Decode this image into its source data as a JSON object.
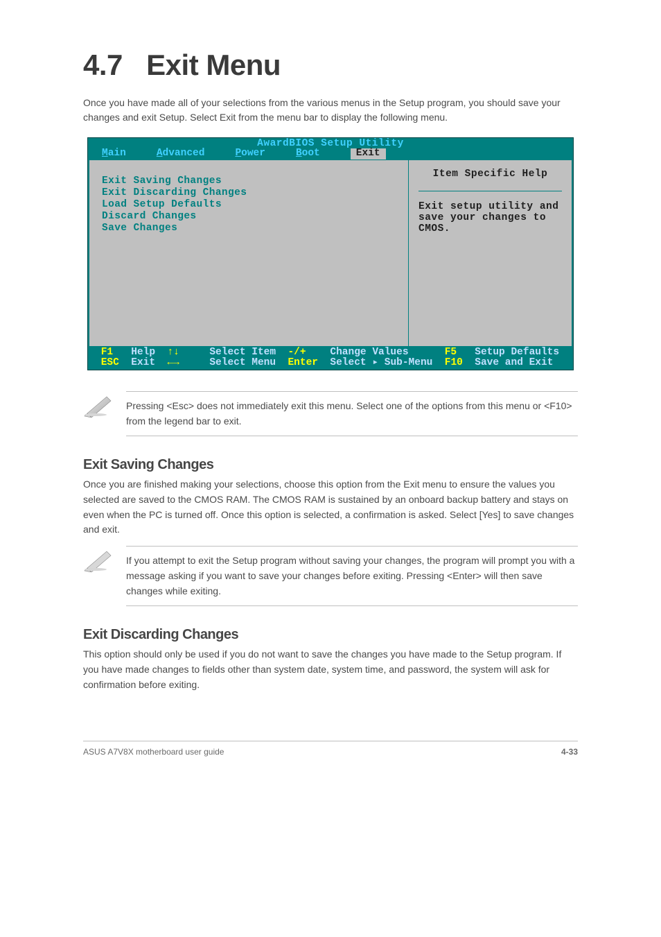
{
  "heading": {
    "number": "4.7",
    "title": "Exit Menu"
  },
  "intro": "Once you have made all of your selections from the various menus in the Setup program, you should save your changes and exit Setup. Select Exit from the menu bar to display the following menu.",
  "bios": {
    "title": "AwardBIOS Setup Utility",
    "menubar": [
      {
        "label": "Main",
        "hotkey_pos": 0
      },
      {
        "label": "Advanced",
        "hotkey_pos": 0
      },
      {
        "label": "Power",
        "hotkey_pos": 0
      },
      {
        "label": "Boot",
        "hotkey_pos": 0
      },
      {
        "label": "Exit",
        "hotkey_pos": 0,
        "active": true
      }
    ],
    "items": [
      "Exit Saving Changes",
      "Exit Discarding Changes",
      "Load Setup Defaults",
      "Discard Changes",
      "Save Changes"
    ],
    "help_title": "Item Specific Help",
    "help_body": "Exit setup utility and save your changes to CMOS.",
    "footer": {
      "rows": [
        [
          {
            "key": "F1",
            "label": "Help"
          },
          {
            "key": "↑↓",
            "label": "Select Item"
          },
          {
            "key": "-/+",
            "label": "Change Values"
          },
          {
            "key": "F5",
            "label": "Setup Defaults"
          }
        ],
        [
          {
            "key": "ESC",
            "label": "Exit"
          },
          {
            "key": "←→",
            "label": "Select Menu"
          },
          {
            "key": "Enter",
            "label": "Select ▸ Sub-Menu"
          },
          {
            "key": "F10",
            "label": "Save and Exit"
          }
        ]
      ]
    },
    "colors": {
      "background": "#008080",
      "panel": "#c0c0c0",
      "title_text": "#40d0ff",
      "menu_text": "#40d0ff",
      "item_text": "#008080",
      "help_text": "#202020",
      "footer_key": "#ffff00",
      "footer_label": "#c0e0ff"
    }
  },
  "note1": "Pressing <Esc> does not immediately exit this menu. Select one of the options from this menu or <F10> from the legend bar to exit.",
  "sub1": {
    "title": "Exit Saving Changes",
    "body": "Once you are finished making your selections, choose this option from the Exit menu to ensure the values you selected are saved to the CMOS RAM. The CMOS RAM is sustained by an onboard backup battery and stays on even when the PC is turned off. Once this option is selected, a confirmation is asked. Select [Yes] to save changes and exit."
  },
  "note2": "If you attempt to exit the Setup program without saving your changes, the program will prompt you with a message asking if you want to save your changes before exiting. Pressing <Enter> will then save changes while exiting.",
  "sub2": {
    "title": "Exit Discarding Changes",
    "body": "This option should only be used if you do not want to save the changes you have made to the Setup program. If you have made changes to fields other than system date, system time, and password, the system will ask for confirmation before exiting."
  },
  "footer": {
    "left": "ASUS A7V8X motherboard user guide",
    "right": "4-33"
  }
}
